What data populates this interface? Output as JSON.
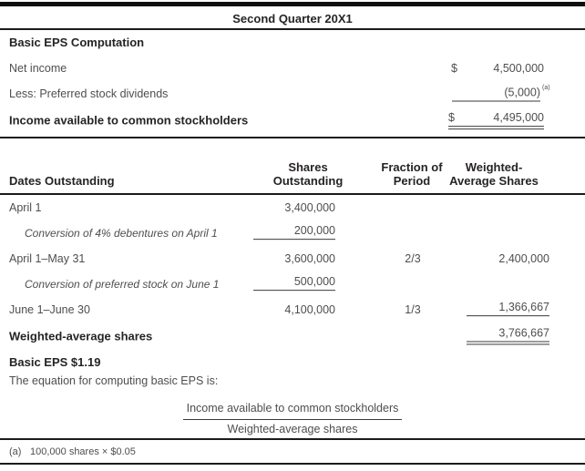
{
  "header": {
    "title": "Second Quarter 20X1"
  },
  "basic_section": {
    "heading": "Basic EPS Computation",
    "net_income": {
      "label": "Net income",
      "currency": "$",
      "value": "4,500,000"
    },
    "preferred_dividends": {
      "label": "Less: Preferred stock dividends",
      "value": "(5,000)",
      "footnote_ref": "(a)"
    },
    "income_available": {
      "label": "Income available to common stockholders",
      "currency": "$",
      "value": "4,495,000"
    }
  },
  "table": {
    "headers": {
      "dates": "Dates Outstanding",
      "shares_l1": "Shares",
      "shares_l2": "Outstanding",
      "fraction_l1": "Fraction of",
      "fraction_l2": "Period",
      "weighted_l1": "Weighted-",
      "weighted_l2": "Average Shares"
    },
    "rows": [
      {
        "date": "April 1",
        "shares": "3,400,000",
        "fraction": "",
        "weighted": ""
      },
      {
        "date": "Conversion of 4% debentures on April 1",
        "shares": "200,000",
        "fraction": "",
        "weighted": ""
      },
      {
        "date": "April 1–May 31",
        "shares": "3,600,000",
        "fraction": "2/3",
        "weighted": "2,400,000"
      },
      {
        "date": "Conversion of preferred stock on June 1",
        "shares": "500,000",
        "fraction": "",
        "weighted": ""
      },
      {
        "date": "June 1–June 30",
        "shares": "4,100,000",
        "fraction": "1/3",
        "weighted": "1,366,667"
      }
    ],
    "total_row": {
      "label": "Weighted-average shares",
      "weighted": "3,766,667"
    }
  },
  "summary": {
    "basic_eps": "Basic EPS $1.19",
    "equation_intro": "The equation for computing basic EPS is:",
    "equation_numerator": "Income available to common stockholders",
    "equation_denominator": "Weighted-average shares"
  },
  "footnote": {
    "marker": "(a)",
    "text": "100,000 shares × $0.05"
  },
  "colors": {
    "rule": "#1b1b1d",
    "heading_text": "#272324",
    "body_text": "#4e4e50",
    "underline": "#3a3a3c"
  }
}
